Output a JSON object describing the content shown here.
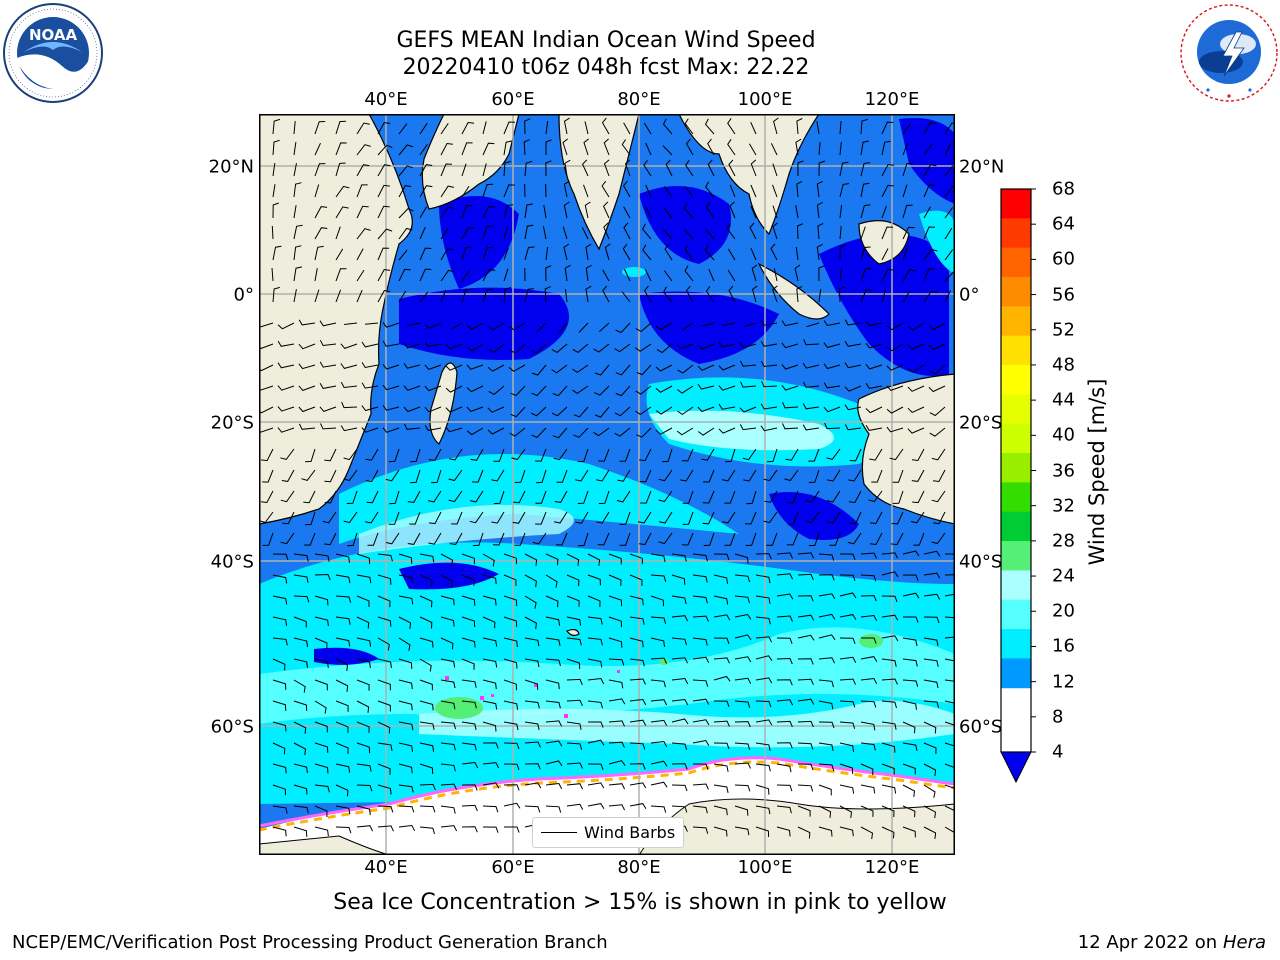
{
  "header": {
    "title_line1": "GEFS MEAN Indian Ocean Wind Speed",
    "title_line2": "20220410 t06z 048h fcst   Max: 22.22"
  },
  "logos": {
    "left": {
      "text": "NOAA",
      "ring_text": "NATIONAL OCEANIC AND ATMOSPHERIC ADMINISTRATION · U.S. DEPARTMENT OF COMMERCE"
    },
    "right": {
      "ring_text": "NATIONAL WEATHER SERVICE"
    }
  },
  "map": {
    "lon_labels": [
      "40°E",
      "60°E",
      "80°E",
      "100°E",
      "120°E"
    ],
    "lat_labels": [
      "20°N",
      "0°",
      "20°S",
      "40°S",
      "60°S"
    ],
    "legend_label": "Wind Barbs",
    "colors": {
      "land": "#efeedd",
      "ice": "#ffffff",
      "grid": "#b0b0b0"
    }
  },
  "colorbar": {
    "title": "Wind Speed [m/s]",
    "ticks": [
      "68",
      "64",
      "60",
      "56",
      "52",
      "48",
      "44",
      "40",
      "36",
      "32",
      "28",
      "24",
      "20",
      "16",
      "12",
      "8",
      "4"
    ],
    "colors": [
      "#ff0000",
      "#ff3a00",
      "#ff6400",
      "#ff8c00",
      "#ffb400",
      "#ffe000",
      "#ffff00",
      "#e6ff00",
      "#ccff00",
      "#99ee00",
      "#33dd00",
      "#00cc33",
      "#55ee77",
      "#aaffff",
      "#55ffff",
      "#00eeff",
      "#0099ff",
      "#0000ee"
    ]
  },
  "footer": {
    "note": "Sea Ice Concentration > 15% is shown in pink to yellow",
    "left": "NCEP/EMC/Verification Post Processing Product Generation Branch",
    "right_date": "12 Apr 2022 on ",
    "right_host": "Hera"
  }
}
